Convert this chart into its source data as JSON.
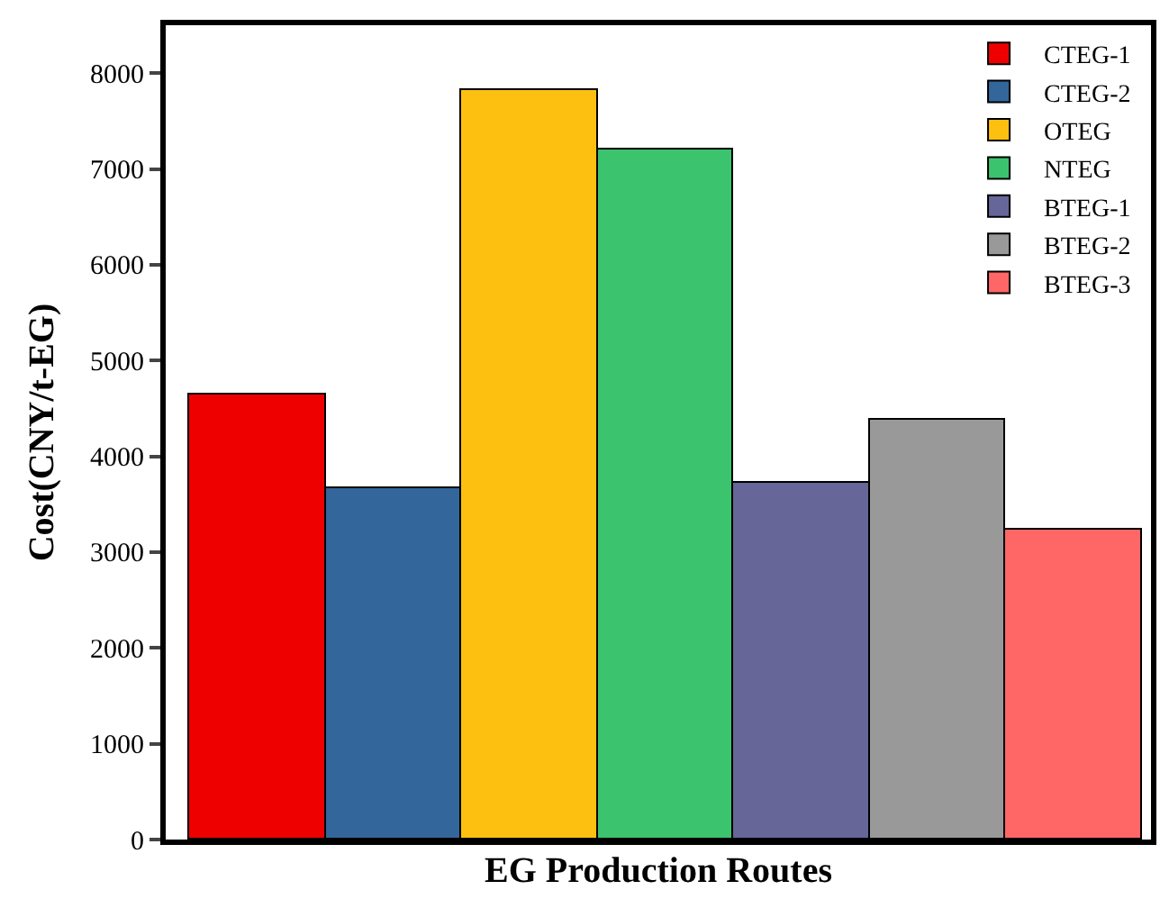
{
  "chart_data": {
    "type": "bar",
    "xlabel": "EG Production Routes",
    "ylabel": "Cost(CNY/t-EG)",
    "categories": [
      null
    ],
    "series": [
      {
        "name": "CTEG-1",
        "color": "#ee0000",
        "values": [
          4650
        ]
      },
      {
        "name": "CTEG-2",
        "color": "#33669a",
        "values": [
          3670
        ]
      },
      {
        "name": "OTEG",
        "color": "#fdc010",
        "values": [
          7830
        ]
      },
      {
        "name": "NTEG",
        "color": "#3cc36e",
        "values": [
          7210
        ]
      },
      {
        "name": "BTEG-1",
        "color": "#666699",
        "values": [
          3730
        ]
      },
      {
        "name": "BTEG-2",
        "color": "#999999",
        "values": [
          4380
        ]
      },
      {
        "name": "BTEG-3",
        "color": "#ff6666",
        "values": [
          3240
        ]
      }
    ],
    "ylim": [
      0,
      8500
    ],
    "yticks": [
      0,
      1000,
      2000,
      3000,
      4000,
      5000,
      6000,
      7000,
      8000
    ],
    "legend": "top right",
    "tick_labels": "y"
  }
}
